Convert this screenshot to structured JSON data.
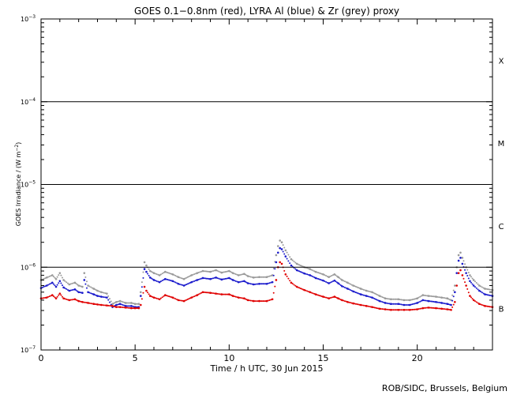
{
  "chart_data": {
    "type": "scatter",
    "title": "GOES 0.1−0.8nm (red), LYRA Al (blue) & Zr (grey) proxy",
    "xlabel": "Time / h UTC, 30 Jun 2015",
    "ylabel_text": "GOES Irradiance / (W m",
    "ylabel_sup": "−2",
    "ylabel_end": ")",
    "xlim": [
      0,
      24
    ],
    "ylim": [
      1e-07,
      0.001
    ],
    "yscale": "log",
    "x_ticks": [
      {
        "v": 0,
        "label": "0"
      },
      {
        "v": 5,
        "label": "5"
      },
      {
        "v": 10,
        "label": "10"
      },
      {
        "v": 15,
        "label": "15"
      },
      {
        "v": 20,
        "label": "20"
      }
    ],
    "y_ticks": [
      {
        "v": 1e-07,
        "base": "10",
        "exp": "−7"
      },
      {
        "v": 1e-06,
        "base": "10",
        "exp": "−6"
      },
      {
        "v": 1e-05,
        "base": "10",
        "exp": "−5"
      },
      {
        "v": 0.0001,
        "base": "10",
        "exp": "−4"
      },
      {
        "v": 0.001,
        "base": "10",
        "exp": "−3"
      }
    ],
    "hlines": [
      1e-06,
      1e-05,
      0.0001
    ],
    "flare_classes": [
      {
        "label": "X",
        "v": 0.000316
      },
      {
        "label": "M",
        "v": 3.16e-05
      },
      {
        "label": "C",
        "v": 3.16e-06
      },
      {
        "label": "B",
        "v": 3.16e-07
      }
    ],
    "series": [
      {
        "color": "#9a9a9a",
        "x": [
          0,
          0.3,
          0.6,
          0.8,
          1.0,
          1.2,
          1.5,
          1.8,
          2.0,
          2.2,
          2.3,
          2.5,
          2.8,
          3.0,
          3.2,
          3.5,
          3.8,
          4.0,
          4.2,
          4.5,
          4.8,
          5.0,
          5.2,
          5.3,
          5.5,
          5.6,
          5.8,
          6.0,
          6.3,
          6.6,
          7.0,
          7.3,
          7.6,
          8.0,
          8.3,
          8.6,
          9.0,
          9.3,
          9.6,
          10.0,
          10.2,
          10.5,
          10.8,
          11.0,
          11.3,
          11.6,
          12.0,
          12.3,
          12.5,
          12.6,
          12.7,
          12.8,
          13.0,
          13.3,
          13.6,
          14.0,
          14.3,
          14.6,
          15.0,
          15.3,
          15.6,
          15.8,
          16.0,
          16.3,
          16.6,
          17.0,
          17.3,
          17.6,
          18.0,
          18.3,
          18.6,
          19.0,
          19.3,
          19.6,
          20.0,
          20.3,
          20.6,
          21.0,
          21.3,
          21.6,
          21.8,
          22.0,
          22.1,
          22.2,
          22.3,
          22.4,
          22.6,
          22.8,
          23.0,
          23.3,
          23.6,
          24.0
        ],
        "y": [
          7e-07,
          7.5e-07,
          8e-07,
          7.2e-07,
          8.5e-07,
          7e-07,
          6.2e-07,
          6.5e-07,
          6e-07,
          5.8e-07,
          8.5e-07,
          6e-07,
          5.5e-07,
          5.2e-07,
          5e-07,
          4.8e-07,
          3.6e-07,
          3.8e-07,
          3.9e-07,
          3.7e-07,
          3.7e-07,
          3.6e-07,
          3.6e-07,
          5e-07,
          1.15e-06,
          1.05e-06,
          9e-07,
          8.5e-07,
          8e-07,
          8.8e-07,
          8.2e-07,
          7.6e-07,
          7.2e-07,
          8e-07,
          8.5e-07,
          9e-07,
          8.8e-07,
          9.2e-07,
          8.6e-07,
          9e-07,
          8.5e-07,
          8e-07,
          8.3e-07,
          7.8e-07,
          7.5e-07,
          7.6e-07,
          7.6e-07,
          8e-07,
          1.4e-06,
          1.8e-06,
          2.1e-06,
          2e-06,
          1.6e-06,
          1.25e-06,
          1.1e-06,
          1e-06,
          9.5e-07,
          8.8e-07,
          8.2e-07,
          7.6e-07,
          8.2e-07,
          7.6e-07,
          7e-07,
          6.5e-07,
          6e-07,
          5.5e-07,
          5.2e-07,
          5e-07,
          4.5e-07,
          4.2e-07,
          4.1e-07,
          4.1e-07,
          4e-07,
          4e-07,
          4.2e-07,
          4.6e-07,
          4.5e-07,
          4.4e-07,
          4.3e-07,
          4.2e-07,
          4e-07,
          6e-07,
          1e-06,
          1.4e-06,
          1.5e-06,
          1.3e-06,
          1e-06,
          8e-07,
          7e-07,
          6e-07,
          5.5e-07,
          5.3e-07
        ]
      },
      {
        "color": "#1a1acc",
        "x": [
          0,
          0.3,
          0.6,
          0.8,
          1.0,
          1.2,
          1.5,
          1.8,
          2.0,
          2.2,
          2.3,
          2.5,
          2.8,
          3.0,
          3.2,
          3.5,
          3.8,
          4.0,
          4.2,
          4.5,
          4.8,
          5.0,
          5.2,
          5.3,
          5.5,
          5.6,
          5.8,
          6.0,
          6.3,
          6.6,
          7.0,
          7.3,
          7.6,
          8.0,
          8.3,
          8.6,
          9.0,
          9.3,
          9.6,
          10.0,
          10.2,
          10.5,
          10.8,
          11.0,
          11.3,
          11.6,
          12.0,
          12.3,
          12.5,
          12.6,
          12.7,
          12.8,
          13.0,
          13.3,
          13.6,
          14.0,
          14.3,
          14.6,
          15.0,
          15.3,
          15.6,
          15.8,
          16.0,
          16.3,
          16.6,
          17.0,
          17.3,
          17.6,
          18.0,
          18.3,
          18.6,
          19.0,
          19.3,
          19.6,
          20.0,
          20.3,
          20.6,
          21.0,
          21.3,
          21.6,
          21.8,
          22.0,
          22.1,
          22.2,
          22.3,
          22.4,
          22.6,
          22.8,
          23.0,
          23.3,
          23.6,
          24.0
        ],
        "y": [
          5.6e-07,
          6e-07,
          6.5e-07,
          5.8e-07,
          6.8e-07,
          5.7e-07,
          5.2e-07,
          5.4e-07,
          5e-07,
          4.9e-07,
          7e-07,
          5e-07,
          4.7e-07,
          4.5e-07,
          4.4e-07,
          4.3e-07,
          3.3e-07,
          3.5e-07,
          3.6e-07,
          3.4e-07,
          3.4e-07,
          3.3e-07,
          3.3e-07,
          4.5e-07,
          9.5e-07,
          8.8e-07,
          7.5e-07,
          7e-07,
          6.6e-07,
          7.2e-07,
          6.8e-07,
          6.3e-07,
          6e-07,
          6.6e-07,
          7e-07,
          7.4e-07,
          7.2e-07,
          7.5e-07,
          7.1e-07,
          7.4e-07,
          7e-07,
          6.6e-07,
          6.8e-07,
          6.4e-07,
          6.2e-07,
          6.3e-07,
          6.3e-07,
          6.6e-07,
          1.15e-06,
          1.5e-06,
          1.7e-06,
          1.65e-06,
          1.35e-06,
          1.05e-06,
          9.2e-07,
          8.4e-07,
          8e-07,
          7.4e-07,
          6.9e-07,
          6.4e-07,
          6.9e-07,
          6.4e-07,
          5.9e-07,
          5.5e-07,
          5.1e-07,
          4.7e-07,
          4.5e-07,
          4.3e-07,
          3.9e-07,
          3.7e-07,
          3.6e-07,
          3.6e-07,
          3.5e-07,
          3.5e-07,
          3.7e-07,
          4e-07,
          3.9e-07,
          3.8e-07,
          3.7e-07,
          3.6e-07,
          3.5e-07,
          5e-07,
          8.5e-07,
          1.2e-06,
          1.3e-06,
          1.1e-06,
          8.5e-07,
          6.8e-07,
          6e-07,
          5.2e-07,
          4.7e-07,
          4.5e-07
        ]
      },
      {
        "color": "#e00000",
        "x": [
          0,
          0.3,
          0.6,
          0.8,
          1.0,
          1.2,
          1.5,
          1.8,
          2.0,
          2.2,
          2.5,
          2.8,
          3.0,
          3.2,
          3.5,
          3.8,
          4.0,
          4.2,
          4.5,
          4.8,
          5.0,
          5.2,
          5.3,
          5.5,
          5.6,
          5.8,
          6.0,
          6.3,
          6.6,
          7.0,
          7.3,
          7.6,
          8.0,
          8.3,
          8.6,
          9.0,
          9.3,
          9.6,
          10.0,
          10.2,
          10.5,
          10.8,
          11.0,
          11.3,
          11.6,
          12.0,
          12.3,
          12.5,
          12.6,
          12.7,
          12.8,
          13.0,
          13.3,
          13.6,
          14.0,
          14.3,
          14.6,
          15.0,
          15.3,
          15.6,
          15.8,
          16.0,
          16.3,
          16.6,
          17.0,
          17.3,
          17.6,
          18.0,
          18.3,
          18.6,
          19.0,
          19.3,
          19.6,
          20.0,
          20.3,
          20.6,
          21.0,
          21.3,
          21.6,
          21.8,
          22.0,
          22.1,
          22.2,
          22.3,
          22.4,
          22.6,
          22.8,
          23.0,
          23.3,
          23.6,
          24.0
        ],
        "y": [
          4.2e-07,
          4.3e-07,
          4.6e-07,
          4.2e-07,
          4.8e-07,
          4.2e-07,
          4e-07,
          4.1e-07,
          3.9e-07,
          3.8e-07,
          3.7e-07,
          3.6e-07,
          3.55e-07,
          3.5e-07,
          3.45e-07,
          3.4e-07,
          3.3e-07,
          3.3e-07,
          3.25e-07,
          3.2e-07,
          3.2e-07,
          3.2e-07,
          3.5e-07,
          5.8e-07,
          5.2e-07,
          4.5e-07,
          4.3e-07,
          4.1e-07,
          4.6e-07,
          4.3e-07,
          4e-07,
          3.9e-07,
          4.3e-07,
          4.6e-07,
          5e-07,
          4.9e-07,
          4.8e-07,
          4.7e-07,
          4.7e-07,
          4.5e-07,
          4.3e-07,
          4.2e-07,
          4e-07,
          3.9e-07,
          3.9e-07,
          3.9e-07,
          4.1e-07,
          7e-07,
          1e-06,
          1.15e-06,
          1.1e-06,
          8.2e-07,
          6.5e-07,
          5.8e-07,
          5.3e-07,
          5e-07,
          4.7e-07,
          4.4e-07,
          4.2e-07,
          4.4e-07,
          4.2e-07,
          4e-07,
          3.8e-07,
          3.65e-07,
          3.5e-07,
          3.4e-07,
          3.3e-07,
          3.15e-07,
          3.1e-07,
          3.05e-07,
          3.05e-07,
          3.05e-07,
          3.05e-07,
          3.1e-07,
          3.2e-07,
          3.25e-07,
          3.2e-07,
          3.15e-07,
          3.1e-07,
          3.05e-07,
          3.8e-07,
          6e-07,
          8.5e-07,
          9.2e-07,
          8e-07,
          6e-07,
          4.5e-07,
          4e-07,
          3.6e-07,
          3.4e-07,
          3.3e-07
        ]
      }
    ],
    "credit": "ROB/SIDC, Brussels, Belgium"
  }
}
